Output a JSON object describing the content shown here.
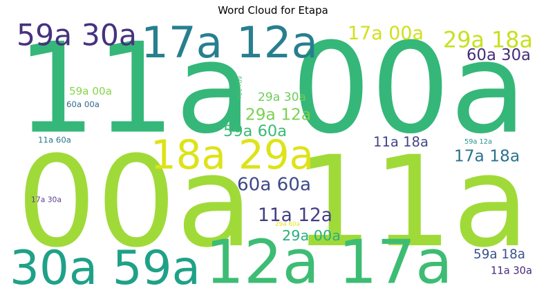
{
  "chart_data": {
    "type": "wordcloud",
    "title": "Word Cloud for Etapa",
    "words": [
      {
        "text": "11a 00a",
        "weight": 100,
        "color": "#35b779"
      },
      {
        "text": "00a 11a",
        "weight": 100,
        "color": "#a0da39"
      },
      {
        "text": "12a 17a",
        "weight": 52,
        "color": "#3dbc74"
      },
      {
        "text": "30a 59a",
        "weight": 43,
        "color": "#1fa187"
      },
      {
        "text": "17a 12a",
        "weight": 41,
        "color": "#277f8e"
      },
      {
        "text": "59a 30a",
        "weight": 31,
        "color": "#46327e"
      },
      {
        "text": "18a 29a",
        "weight": 38,
        "color": "#dde318"
      },
      {
        "text": "29a 18a",
        "weight": 20,
        "color": "#c8e020"
      },
      {
        "text": "17a 00a",
        "weight": 17,
        "color": "#d0e11c"
      },
      {
        "text": "60a 30a",
        "weight": 15,
        "color": "#472d7b"
      },
      {
        "text": "60a 60a",
        "weight": 15,
        "color": "#3e4989"
      },
      {
        "text": "11a 12a",
        "weight": 15,
        "color": "#433e85"
      },
      {
        "text": "17a 18a",
        "weight": 14,
        "color": "#2c728e"
      },
      {
        "text": "59a 60a",
        "weight": 13,
        "color": "#3aba76"
      },
      {
        "text": "29a 12a",
        "weight": 13,
        "color": "#7ad151"
      },
      {
        "text": "29a 00a",
        "weight": 12,
        "color": "#29af7f"
      },
      {
        "text": "29a 30a",
        "weight": 11,
        "color": "#6ccd5a"
      },
      {
        "text": "11a 18a",
        "weight": 11,
        "color": "#414487"
      },
      {
        "text": "59a 18a",
        "weight": 11,
        "color": "#3b528b"
      },
      {
        "text": "11a 30a",
        "weight": 9,
        "color": "#482878"
      },
      {
        "text": "59a 00a",
        "weight": 9,
        "color": "#86d549"
      },
      {
        "text": "60a 00a",
        "weight": 7,
        "color": "#31688e"
      },
      {
        "text": "11a 60a",
        "weight": 6,
        "color": "#2a788e"
      },
      {
        "text": "17a 30a",
        "weight": 5,
        "color": "#5c3c8e"
      },
      {
        "text": "59a 12a",
        "weight": 4,
        "color": "#21918c"
      },
      {
        "text": "60a 18a",
        "weight": 4,
        "color": "#4ac16d"
      },
      {
        "text": "29a 60a",
        "weight": 3,
        "color": "#e5e419"
      }
    ]
  }
}
